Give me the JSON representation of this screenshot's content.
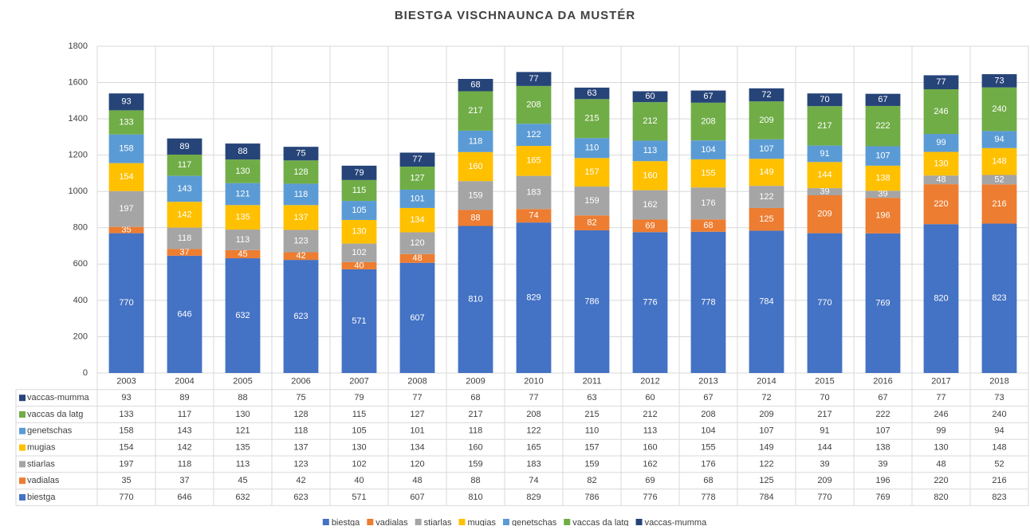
{
  "chart_data": {
    "type": "stacked_bar",
    "title": "BIESTGA VISCHNAUNCA DA MUSTÉR",
    "categories": [
      "2003",
      "2004",
      "2005",
      "2006",
      "2007",
      "2008",
      "2009",
      "2010",
      "2011",
      "2012",
      "2013",
      "2014",
      "2015",
      "2016",
      "2017",
      "2018"
    ],
    "series": [
      {
        "name": "biestga",
        "color": "#4472c4",
        "values": [
          770,
          646,
          632,
          623,
          571,
          607,
          810,
          829,
          786,
          776,
          778,
          784,
          770,
          769,
          820,
          823
        ]
      },
      {
        "name": "vadialas",
        "color": "#ed7d31",
        "values": [
          35,
          37,
          45,
          42,
          40,
          48,
          88,
          74,
          82,
          69,
          68,
          125,
          209,
          196,
          220,
          216
        ]
      },
      {
        "name": "stiarlas",
        "color": "#a5a5a5",
        "values": [
          197,
          118,
          113,
          123,
          102,
          120,
          159,
          183,
          159,
          162,
          176,
          122,
          39,
          39,
          48,
          52
        ]
      },
      {
        "name": "mugias",
        "color": "#ffc000",
        "values": [
          154,
          142,
          135,
          137,
          130,
          134,
          160,
          165,
          157,
          160,
          155,
          149,
          144,
          138,
          130,
          148
        ]
      },
      {
        "name": "genetschas",
        "color": "#5b9bd5",
        "values": [
          158,
          143,
          121,
          118,
          105,
          101,
          118,
          122,
          110,
          113,
          104,
          107,
          91,
          107,
          99,
          94
        ]
      },
      {
        "name": "vaccas da latg",
        "color": "#70ad47",
        "values": [
          133,
          117,
          130,
          128,
          115,
          127,
          217,
          208,
          215,
          212,
          208,
          209,
          217,
          222,
          246,
          240
        ]
      },
      {
        "name": "vaccas-mumma",
        "color": "#264478",
        "values": [
          93,
          89,
          88,
          75,
          79,
          77,
          68,
          77,
          63,
          60,
          67,
          72,
          70,
          67,
          77,
          73
        ]
      }
    ],
    "ylim": [
      0,
      1800
    ],
    "yticks": [
      0,
      200,
      400,
      600,
      800,
      1000,
      1200,
      1400,
      1600,
      1800
    ],
    "grid": true,
    "legend": "bottom",
    "data_table": true
  }
}
